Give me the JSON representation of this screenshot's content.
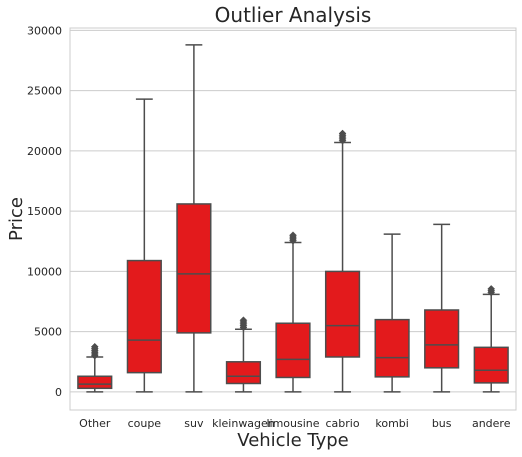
{
  "chart_data": {
    "type": "box",
    "title": "Outlier Analysis",
    "xlabel": "Vehicle Type",
    "ylabel": "Price",
    "ylim": [
      -1500,
      30200
    ],
    "yticks": [
      0,
      5000,
      10000,
      15000,
      20000,
      25000,
      30000
    ],
    "ytick_labels": [
      "0",
      "5000",
      "10000",
      "15000",
      "20000",
      "25000",
      "30000"
    ],
    "grid": "horizontal",
    "box_color": "#e31a1c",
    "line_color": "#4d4d4d",
    "categories": [
      "Other",
      "coupe",
      "suv",
      "kleinwagen",
      "limousine",
      "cabrio",
      "kombi",
      "bus",
      "andere"
    ],
    "boxes": [
      {
        "category": "Other",
        "whisker_low": 0,
        "q1": 300,
        "median": 650,
        "q3": 1300,
        "whisker_high": 2900,
        "outliers": [
          3000,
          3150,
          3300,
          3450,
          3600,
          3750
        ]
      },
      {
        "category": "coupe",
        "whisker_low": 0,
        "q1": 1600,
        "median": 4300,
        "q3": 10900,
        "whisker_high": 24300,
        "outliers": []
      },
      {
        "category": "suv",
        "whisker_low": 0,
        "q1": 4900,
        "median": 9800,
        "q3": 15600,
        "whisker_high": 28800,
        "outliers": []
      },
      {
        "category": "kleinwagen",
        "whisker_low": 0,
        "q1": 700,
        "median": 1300,
        "q3": 2500,
        "whisker_high": 5200,
        "outliers": [
          5350,
          5500,
          5650,
          5800,
          5950
        ]
      },
      {
        "category": "limousine",
        "whisker_low": 0,
        "q1": 1200,
        "median": 2700,
        "q3": 5700,
        "whisker_high": 12400,
        "outliers": [
          12550,
          12700,
          12850,
          13000
        ]
      },
      {
        "category": "cabrio",
        "whisker_low": 0,
        "q1": 2900,
        "median": 5500,
        "q3": 10000,
        "whisker_high": 20700,
        "outliers": [
          20850,
          21000,
          21150,
          21300,
          21450
        ]
      },
      {
        "category": "kombi",
        "whisker_low": 0,
        "q1": 1250,
        "median": 2850,
        "q3": 6000,
        "whisker_high": 13100,
        "outliers": []
      },
      {
        "category": "bus",
        "whisker_low": 0,
        "q1": 2000,
        "median": 3900,
        "q3": 6800,
        "whisker_high": 13900,
        "outliers": []
      },
      {
        "category": "andere",
        "whisker_low": 0,
        "q1": 750,
        "median": 1800,
        "q3": 3700,
        "whisker_high": 8100,
        "outliers": [
          8250,
          8400,
          8550
        ]
      }
    ]
  }
}
